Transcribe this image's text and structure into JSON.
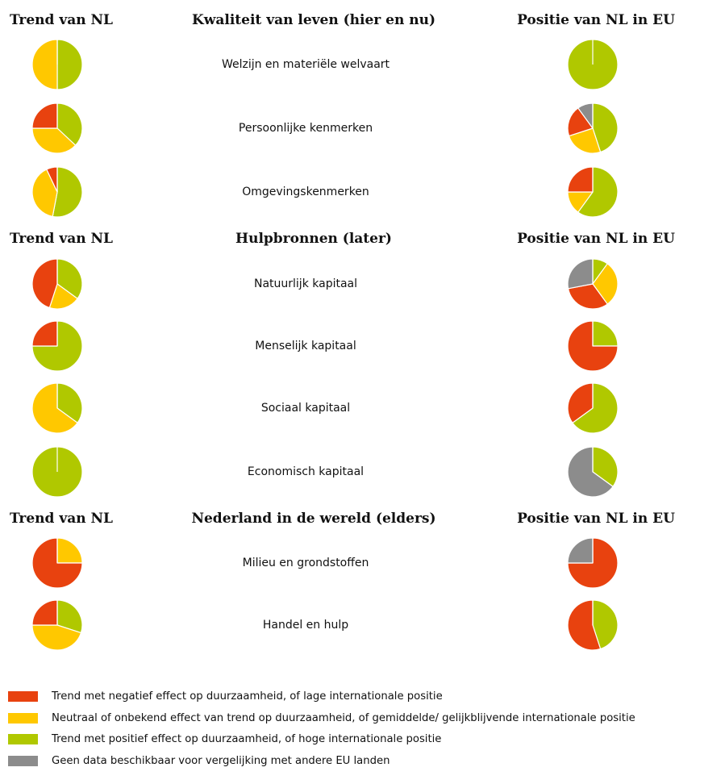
{
  "colors": {
    "negative": "#E8420F",
    "neutral": "#FFC800",
    "positive": "#B0C800",
    "nodata": "#8C8C8C"
  },
  "sections": [
    {
      "left_header": "Trend van NL",
      "middle_header": "Kwaliteit van leven (hier en nu)",
      "right_header": "Positie van NL in EU",
      "rows": [
        {
          "label": "Welzijn en materiële welvaart",
          "trend": {
            "positive": 50,
            "neutral": 50,
            "negative": 0,
            "nodata": 0
          },
          "eu": {
            "positive": 100,
            "neutral": 0,
            "negative": 0,
            "nodata": 0
          }
        },
        {
          "label": "Persoonlijke kenmerken",
          "trend": {
            "positive": 37,
            "neutral": 38,
            "negative": 25,
            "nodata": 0
          },
          "eu": {
            "positive": 45,
            "neutral": 25,
            "negative": 20,
            "nodata": 10
          }
        },
        {
          "label": "Omgevingskenmerken",
          "trend": {
            "positive": 53,
            "neutral": 40,
            "negative": 7,
            "nodata": 0
          },
          "eu": {
            "positive": 60,
            "neutral": 15,
            "negative": 25,
            "nodata": 0
          }
        }
      ]
    },
    {
      "left_header": "Trend van NL",
      "middle_header": "Hulpbronnen (later)",
      "right_header": "Positie van NL in EU",
      "rows": [
        {
          "label": "Natuurlijk kapitaal",
          "trend": {
            "positive": 35,
            "neutral": 20,
            "negative": 45,
            "nodata": 0
          },
          "eu": {
            "positive": 10,
            "neutral": 30,
            "negative": 32,
            "nodata": 28
          }
        },
        {
          "label": "Menselijk kapitaal",
          "trend": {
            "positive": 75,
            "neutral": 0,
            "negative": 25,
            "nodata": 0
          },
          "eu": {
            "positive": 25,
            "neutral": 0,
            "negative": 75,
            "nodata": 0
          }
        },
        {
          "label": "Sociaal kapitaal",
          "trend": {
            "positive": 35,
            "neutral": 65,
            "negative": 0,
            "nodata": 0
          },
          "eu": {
            "positive": 65,
            "neutral": 0,
            "negative": 35,
            "nodata": 0
          }
        },
        {
          "label": "Economisch kapitaal",
          "trend": {
            "positive": 100,
            "neutral": 0,
            "negative": 0,
            "nodata": 0
          },
          "eu": {
            "positive": 35,
            "neutral": 0,
            "negative": 0,
            "nodata": 65
          }
        }
      ]
    },
    {
      "left_header": "Trend van NL",
      "middle_header": "Nederland in de wereld (elders)",
      "right_header": "Positie van NL in EU",
      "rows": [
        {
          "label": "Milieu en grondstoffen",
          "trend": {
            "positive": 0,
            "neutral": 25,
            "negative": 75,
            "nodata": 0
          },
          "eu": {
            "positive": 0,
            "neutral": 0,
            "negative": 75,
            "nodata": 25
          }
        },
        {
          "label": "Handel en hulp",
          "trend": {
            "positive": 30,
            "neutral": 45,
            "negative": 25,
            "nodata": 0
          },
          "eu": {
            "positive": 45,
            "neutral": 0,
            "negative": 55,
            "nodata": 0
          }
        }
      ]
    }
  ],
  "legend": [
    {
      "key": "negative",
      "text": "Trend met negatief effect op duurzaamheid, of lage internationale positie"
    },
    {
      "key": "neutral",
      "text": "Neutraal of onbekend effect van trend op duurzaamheid, of gemiddelde/ gelijkblijvende internationale positie"
    },
    {
      "key": "positive",
      "text": "Trend met positief effect op duurzaamheid, of  hoge internationale positie"
    },
    {
      "key": "nodata",
      "text": "Geen data beschikbaar voor vergelijking met andere EU landen"
    }
  ]
}
